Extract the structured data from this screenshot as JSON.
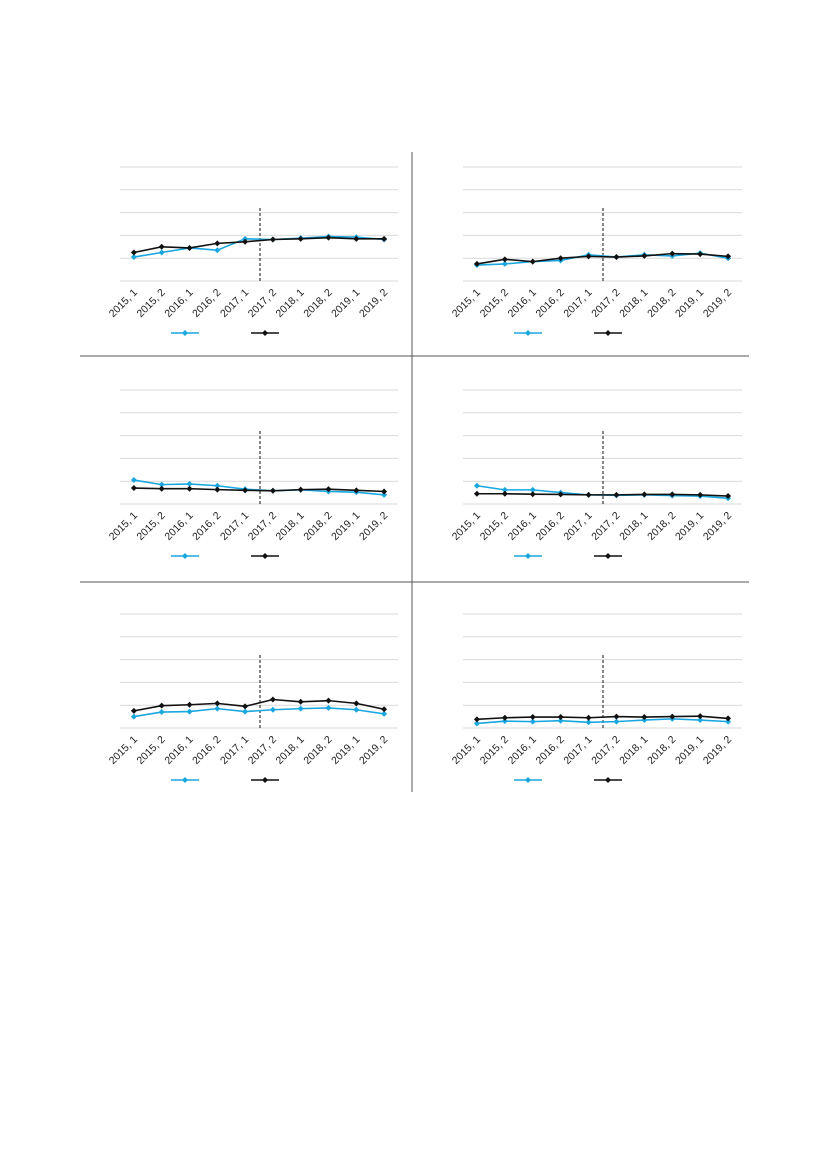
{
  "colors": {
    "series_a": "#1aa7e0",
    "series_b": "#111111",
    "gridline": "#d9d9d9",
    "divider": "#555555"
  },
  "chart_data": [
    {
      "type": "line",
      "categories": [
        "2015, 1",
        "2015, 2",
        "2016, 1",
        "2016, 2",
        "2017, 1",
        "2017, 2",
        "2018, 1",
        "2018, 2",
        "2019, 1",
        "2019, 2"
      ],
      "ylim": [
        0,
        5
      ],
      "grid": true,
      "legend": "bottom-center",
      "marker_line_after_category": "2017, 1",
      "series": [
        {
          "values": [
            1.05,
            1.25,
            1.45,
            1.35,
            1.85,
            1.82,
            1.88,
            1.95,
            1.92,
            1.82
          ]
        },
        {
          "values": [
            1.25,
            1.5,
            1.45,
            1.65,
            1.72,
            1.82,
            1.85,
            1.9,
            1.85,
            1.85
          ]
        }
      ]
    },
    {
      "type": "line",
      "categories": [
        "2015, 1",
        "2015, 2",
        "2016, 1",
        "2016, 2",
        "2017, 1",
        "2017, 2",
        "2018, 1",
        "2018, 2",
        "2019, 1",
        "2019, 2"
      ],
      "ylim": [
        0,
        5
      ],
      "grid": true,
      "legend": "bottom-center",
      "marker_line_after_category": "2017, 1",
      "series": [
        {
          "values": [
            0.7,
            0.75,
            0.85,
            0.9,
            1.15,
            1.05,
            1.15,
            1.1,
            1.22,
            1.0
          ]
        },
        {
          "values": [
            0.75,
            0.95,
            0.85,
            1.0,
            1.08,
            1.05,
            1.1,
            1.2,
            1.18,
            1.08
          ]
        }
      ]
    },
    {
      "type": "line",
      "categories": [
        "2015, 1",
        "2015, 2",
        "2016, 1",
        "2016, 2",
        "2017, 1",
        "2017, 2",
        "2018, 1",
        "2018, 2",
        "2019, 1",
        "2019, 2"
      ],
      "ylim": [
        0,
        5
      ],
      "grid": true,
      "legend": "bottom-center",
      "marker_line_after_category": "2017, 1",
      "series": [
        {
          "values": [
            1.05,
            0.85,
            0.88,
            0.8,
            0.65,
            0.58,
            0.62,
            0.55,
            0.52,
            0.4
          ]
        },
        {
          "values": [
            0.7,
            0.67,
            0.67,
            0.63,
            0.6,
            0.58,
            0.63,
            0.65,
            0.6,
            0.55
          ]
        }
      ]
    },
    {
      "type": "line",
      "categories": [
        "2015, 1",
        "2015, 2",
        "2016, 1",
        "2016, 2",
        "2017, 1",
        "2017, 2",
        "2018, 1",
        "2018, 2",
        "2019, 1",
        "2019, 2"
      ],
      "ylim": [
        0,
        5
      ],
      "grid": true,
      "legend": "bottom-center",
      "marker_line_after_category": "2017, 1",
      "series": [
        {
          "values": [
            0.8,
            0.62,
            0.62,
            0.5,
            0.4,
            0.38,
            0.4,
            0.37,
            0.35,
            0.25
          ]
        },
        {
          "values": [
            0.45,
            0.45,
            0.43,
            0.42,
            0.4,
            0.4,
            0.42,
            0.42,
            0.4,
            0.35
          ]
        }
      ]
    },
    {
      "type": "line",
      "categories": [
        "2015, 1",
        "2015, 2",
        "2016, 1",
        "2016, 2",
        "2017, 1",
        "2017, 2",
        "2018, 1",
        "2018, 2",
        "2019, 1",
        "2019, 2"
      ],
      "ylim": [
        0,
        5
      ],
      "grid": true,
      "legend": "bottom-center",
      "marker_line_after_category": "2017, 1",
      "series": [
        {
          "values": [
            0.5,
            0.7,
            0.72,
            0.85,
            0.72,
            0.8,
            0.85,
            0.88,
            0.8,
            0.62
          ]
        },
        {
          "values": [
            0.75,
            0.98,
            1.02,
            1.08,
            0.95,
            1.25,
            1.15,
            1.2,
            1.08,
            0.82
          ]
        }
      ]
    },
    {
      "type": "line",
      "categories": [
        "2015, 1",
        "2015, 2",
        "2016, 1",
        "2016, 2",
        "2017, 1",
        "2017, 2",
        "2018, 1",
        "2018, 2",
        "2019, 1",
        "2019, 2"
      ],
      "ylim": [
        0,
        5
      ],
      "grid": true,
      "legend": "bottom-center",
      "marker_line_after_category": "2017, 1",
      "series": [
        {
          "values": [
            0.2,
            0.3,
            0.28,
            0.32,
            0.25,
            0.28,
            0.35,
            0.4,
            0.35,
            0.28
          ]
        },
        {
          "values": [
            0.38,
            0.45,
            0.48,
            0.48,
            0.45,
            0.5,
            0.48,
            0.5,
            0.52,
            0.42
          ]
        }
      ]
    }
  ]
}
